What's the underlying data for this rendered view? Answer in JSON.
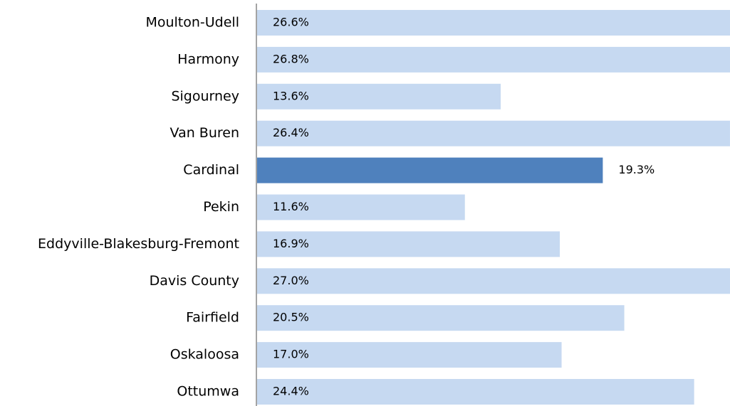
{
  "chart_data": {
    "type": "bar",
    "orientation": "horizontal",
    "categories": [
      "Moulton-Udell",
      "Harmony",
      "Sigourney",
      "Van Buren",
      "Cardinal",
      "Pekin",
      "Eddyville-Blakesburg-Fremont",
      "Davis County",
      "Fairfield",
      "Oskaloosa",
      "Ottumwa"
    ],
    "values": [
      26.6,
      26.8,
      13.6,
      26.4,
      19.3,
      11.6,
      16.9,
      27.0,
      20.5,
      17.0,
      24.4
    ],
    "value_labels": [
      "26.6%",
      "26.8%",
      "13.6%",
      "26.4%",
      "19.3%",
      "11.6%",
      "16.9%",
      "27.0%",
      "20.5%",
      "17.0%",
      "24.4%"
    ],
    "colors": [
      "#c6d9f1",
      "#c6d9f1",
      "#c6d9f1",
      "#c6d9f1",
      "#4f81bd",
      "#c6d9f1",
      "#c6d9f1",
      "#c6d9f1",
      "#c6d9f1",
      "#c6d9f1",
      "#c6d9f1"
    ]
  }
}
